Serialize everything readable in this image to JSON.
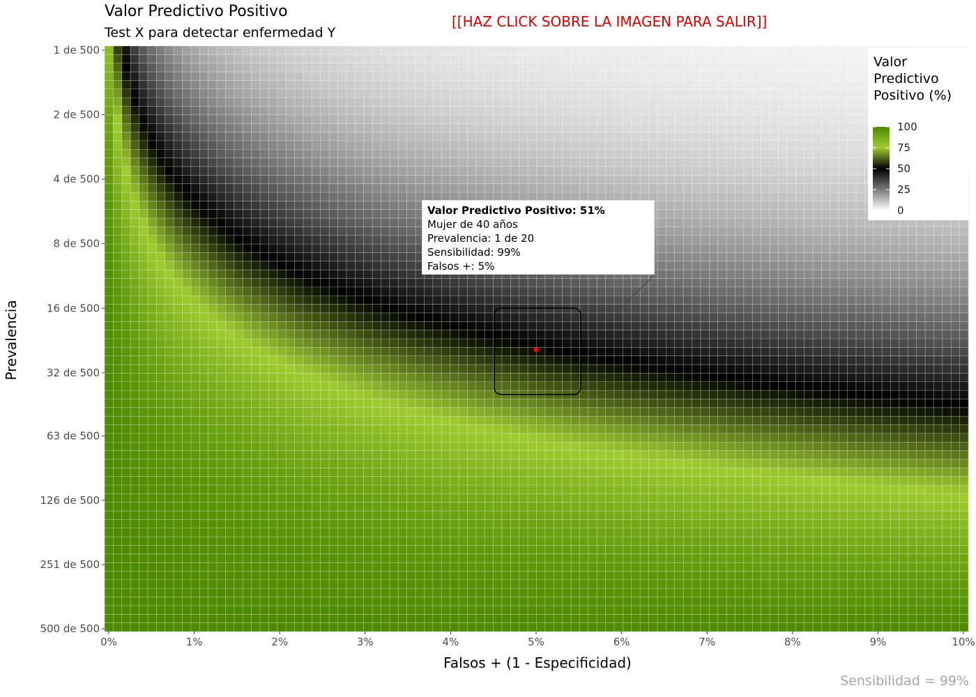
{
  "title": "Valor Predictivo Positivo",
  "subtitle": "Test X para detectar enfermedad Y",
  "exit_link": "[[HAZ CLICK SOBRE LA IMAGEN PARA SALIR]]",
  "caption": "Sensibilidad = 99%",
  "tooltip": {
    "title": "Valor Predictivo Positivo: 51%",
    "line1": "Mujer de 40 años",
    "line2": "Prevalencia: 1 de 20",
    "line3": "Sensibilidad: 99%",
    "line4": "Falsos +: 5%"
  },
  "legend": {
    "title_lines": [
      "Valor",
      "Predictivo",
      "Positivo (%)"
    ],
    "ticks": [
      "100",
      "75",
      "50",
      "25",
      "0"
    ]
  },
  "colors": {
    "high": "#4e8a00",
    "mid_high": "#9fcc30",
    "middle": "#000000",
    "low": "#ffffff",
    "marker": "#ff0000",
    "exit": "#d10000"
  },
  "chart_data": {
    "type": "heatmap",
    "xlabel": "Falsos + (1 - Especificidad)",
    "ylabel": "Prevalencia",
    "x_ticks": [
      "0%",
      "1%",
      "2%",
      "3%",
      "4%",
      "5%",
      "6%",
      "7%",
      "8%",
      "9%",
      "10%"
    ],
    "x_range": [
      0,
      10
    ],
    "y_ticks": [
      "1 de 500",
      "2 de 500",
      "4 de 500",
      "8 de 500",
      "16 de 500",
      "32 de 500",
      "63 de 500",
      "126 de 500",
      "251 de 500",
      "500 de 500"
    ],
    "y_scale": "log",
    "y_range": [
      0.002,
      1
    ],
    "sensitivity": 0.99,
    "value": "positive predictive value (%)",
    "value_range": [
      0,
      100
    ],
    "highlight": {
      "false_positive_pct": 5,
      "prevalence": 0.05,
      "ppv_pct": 51
    },
    "legend_position": "top-right"
  }
}
